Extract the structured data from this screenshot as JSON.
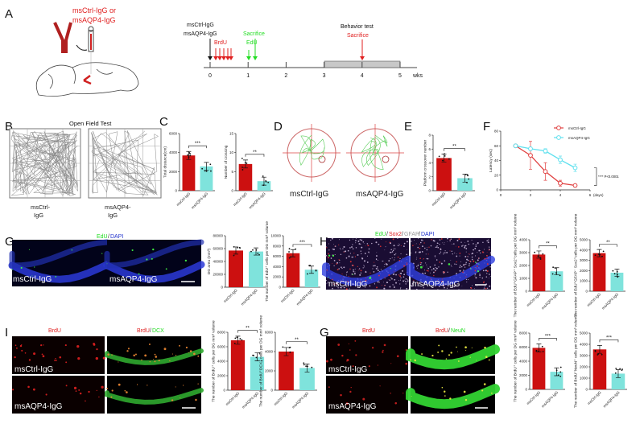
{
  "panels": {
    "A": "A",
    "B": "B",
    "C": "C",
    "D": "D",
    "E": "E",
    "F": "F",
    "G": "G",
    "H": "H",
    "I": "I",
    "G2": "G"
  },
  "colors": {
    "ctrl": "#cc1010",
    "aqp4": "#7fe3dc",
    "green": "#22dd22",
    "red": "#e02020",
    "dapi": "#2233cc"
  },
  "panelA": {
    "injection_label_1": "msCtrl-IgG or",
    "injection_label_2": "msAQP4-IgG",
    "timeline_label_1": "msCtrl-IgG",
    "timeline_label_2": "msAQP4-IgG",
    "brdu": "BrdU",
    "edu": "EdU",
    "sacrifice_early": "Sacrifice",
    "behavior": "Behavior test",
    "sacrifice_late": "Sacrifice",
    "ticks": [
      "0",
      "1",
      "2",
      "3",
      "4",
      "5"
    ],
    "unit": "wks"
  },
  "panelB": {
    "title": "Open Field Test",
    "label_ctrl_1": "msCtrl-",
    "label_ctrl_2": "IgG",
    "label_aqp4_1": "msAQP4-",
    "label_aqp4_2": "IgG"
  },
  "panelD": {
    "label_ctrl": "msCtrl-IgG",
    "label_aqp4": "msAQP4-IgG"
  },
  "panelG": {
    "stain_edu": "EdU",
    "stain_sep": "/",
    "stain_dapi": "DAPI",
    "label_ctrl": "msCtrl-IgG",
    "label_aqp4": "msAQP4-IgG"
  },
  "panelH": {
    "stain_edu": "EdU",
    "s1": "/",
    "stain_sox2": "Sox2",
    "s2": "/",
    "stain_gfap": "GFAP",
    "s3": "/",
    "stain_dapi": "DAPI",
    "label_ctrl": "msCtrl-IgG",
    "label_aqp4": "msAQP4-IgG"
  },
  "panelI": {
    "stain_brdu": "BrdU",
    "stain_brdu2": "BrdU",
    "sep": "/",
    "stain_dcx": "DCX",
    "label_ctrl": "msCtrl-IgG",
    "label_aqp4": "msAQP4-IgG"
  },
  "panelG2": {
    "stain_brdu": "BrdU",
    "stain_brdu2": "BrdU",
    "sep": "/",
    "stain_neun": "NeuN",
    "label_ctrl": "msCtrl-IgG",
    "label_aqp4": "msAQP4-IgG"
  },
  "chart_data": [
    {
      "id": "C1",
      "type": "bar",
      "categories": [
        "msCtrl-IgG",
        "msAQP4-IgG"
      ],
      "values": [
        3700,
        2550
      ],
      "ylabel": "Total distance(cm)",
      "ylim": [
        0,
        6000
      ],
      "yticks": [
        "0",
        "2000",
        "4000",
        "6000"
      ],
      "significance": "***"
    },
    {
      "id": "C2",
      "type": "bar",
      "categories": [
        "msCtrl-IgG",
        "msAQP4-IgG"
      ],
      "values": [
        7,
        2.5
      ],
      "ylabel": "Number of crossing",
      "ylim": [
        0,
        15
      ],
      "yticks": [
        "0",
        "5",
        "10",
        "15"
      ],
      "significance": "**"
    },
    {
      "id": "E",
      "type": "bar",
      "categories": [
        "msCtrl-IgG",
        "msAQP4-IgG"
      ],
      "values": [
        4.7,
        1.8
      ],
      "ylabel": "Platform crossover number",
      "ylim": [
        0,
        8
      ],
      "yticks": [
        "0",
        "2",
        "4",
        "6",
        "8"
      ],
      "significance": "**"
    },
    {
      "id": "G1",
      "type": "bar",
      "categories": [
        "msCtrl-IgG",
        "msAQP4-IgG"
      ],
      "values": [
        57000,
        55500
      ],
      "ylabel": "DG area (mm³)",
      "ylim": [
        0,
        80000
      ],
      "yticks": [
        "0",
        "20000",
        "40000",
        "60000",
        "80000"
      ],
      "significance": ""
    },
    {
      "id": "G2",
      "type": "bar",
      "categories": [
        "msCtrl-IgG",
        "msAQP4-IgG"
      ],
      "values": [
        6600,
        3400
      ],
      "ylabel": "The number of EdU⁺ cells per DG mm³ volume",
      "ylim": [
        0,
        10000
      ],
      "yticks": [
        "0",
        "2000",
        "4000",
        "6000",
        "8000",
        "10000"
      ],
      "significance": "***"
    },
    {
      "id": "H1",
      "type": "bar",
      "categories": [
        "msCtrl-IgG",
        "msAQP4-IgG"
      ],
      "values": [
        2850,
        1550
      ],
      "ylabel": "The number of EdU⁺GFAP⁺ Sox2⁺cells per DG mm³ volume",
      "ylim": [
        0,
        4000
      ],
      "yticks": [
        "0",
        "1000",
        "2000",
        "3000",
        "4000"
      ],
      "significance": "**"
    },
    {
      "id": "H2",
      "type": "bar",
      "categories": [
        "msCtrl-IgG",
        "msAQP4-IgG"
      ],
      "values": [
        3700,
        1800
      ],
      "ylabel": "The number of EdU⁺GFAP⁻ Sox2⁺cells per DG mm³ volume",
      "ylim": [
        0,
        5000
      ],
      "yticks": [
        "0",
        "1000",
        "2000",
        "3000",
        "4000",
        "5000"
      ],
      "significance": "**"
    },
    {
      "id": "I1",
      "type": "bar",
      "categories": [
        "msCtrl-IgG",
        "msAQP4-IgG"
      ],
      "values": [
        6900,
        4600
      ],
      "ylabel": "The number of BrdU⁺ cells per DG mm³ volume",
      "ylim": [
        0,
        8000
      ],
      "yticks": [
        "0",
        "2000",
        "4000",
        "6000",
        "8000"
      ],
      "significance": "**"
    },
    {
      "id": "I2",
      "type": "bar",
      "categories": [
        "msCtrl-IgG",
        "msAQP4-IgG"
      ],
      "values": [
        4000,
        2300
      ],
      "ylabel": "The number of BrdU⁺DCX⁺ cells per DG mm³ volume",
      "ylim": [
        0,
        6000
      ],
      "yticks": [
        "0",
        "2000",
        "4000",
        "6000"
      ],
      "significance": "**"
    },
    {
      "id": "J1",
      "type": "bar",
      "categories": [
        "msCtrl-IgG",
        "msAQP4-IgG"
      ],
      "values": [
        5900,
        2500
      ],
      "ylabel": "The number of BrdU⁺ cells per DG mm³ volume",
      "ylim": [
        0,
        8000
      ],
      "yticks": [
        "0",
        "2000",
        "4000",
        "6000",
        "8000"
      ],
      "significance": "***"
    },
    {
      "id": "J2",
      "type": "bar",
      "categories": [
        "msCtrl-IgG",
        "msAQP4-IgG"
      ],
      "values": [
        3550,
        1400
      ],
      "ylabel": "The number of BrdU⁺NeuN⁺ cells per DG mm³ volume",
      "ylim": [
        0,
        5000
      ],
      "yticks": [
        "0",
        "1000",
        "2000",
        "3000",
        "4000",
        "5000"
      ],
      "significance": "***"
    },
    {
      "id": "F",
      "type": "line",
      "x": [
        1,
        2,
        3,
        4,
        5
      ],
      "series": [
        {
          "name": "msCtrl-IgG",
          "values": [
            60,
            47,
            25,
            9,
            6
          ],
          "err": [
            0,
            19,
            12,
            4,
            1
          ]
        },
        {
          "name": "msAQP4-IgG",
          "values": [
            60,
            56,
            53,
            41,
            30
          ],
          "err": [
            0,
            2,
            3,
            5,
            5
          ]
        }
      ],
      "ylabel": "Latency (sec)",
      "xlabel": "(days)",
      "ylim": [
        0,
        80
      ],
      "xlim": [
        0,
        6
      ],
      "yticks": [
        "0",
        "20",
        "40",
        "60",
        "80"
      ],
      "xticks": [
        "0",
        "2",
        "4",
        "6"
      ],
      "annotation": "**** P<0.0001"
    }
  ]
}
